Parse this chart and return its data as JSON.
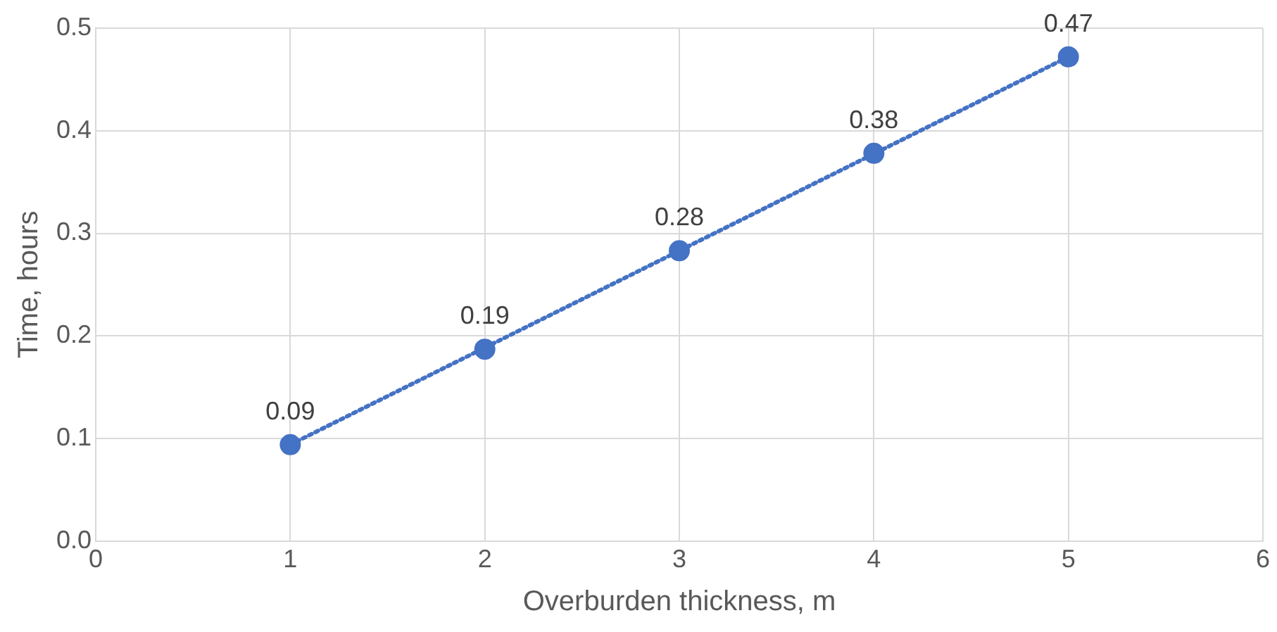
{
  "chart_data": {
    "type": "scatter",
    "xlabel": "Overburden thickness, m",
    "ylabel": "Time, hours",
    "xlim": [
      0,
      6
    ],
    "xticks": [
      0,
      1,
      2,
      3,
      4,
      5,
      6
    ],
    "ylim": [
      0,
      0.5
    ],
    "yticks": [
      {
        "value": 0,
        "label": "0.0"
      },
      0.1,
      0.2,
      0.3,
      0.4,
      0.5
    ],
    "grid": true,
    "marker": "circle",
    "series": [
      {
        "color": "#4472c4",
        "x": [
          1,
          2,
          3,
          4,
          5
        ],
        "values": [
          0.094,
          0.187,
          0.283,
          0.378,
          0.472
        ],
        "value_labels": [
          "0.09",
          "0.19",
          "0.28",
          "0.38",
          "0.47"
        ]
      },
      {
        "type": "line",
        "color": "#4472c4",
        "x": [
          1,
          5
        ],
        "values": [
          0.094,
          0.472
        ],
        "line_style": "dotted",
        "marker": "none"
      }
    ]
  }
}
